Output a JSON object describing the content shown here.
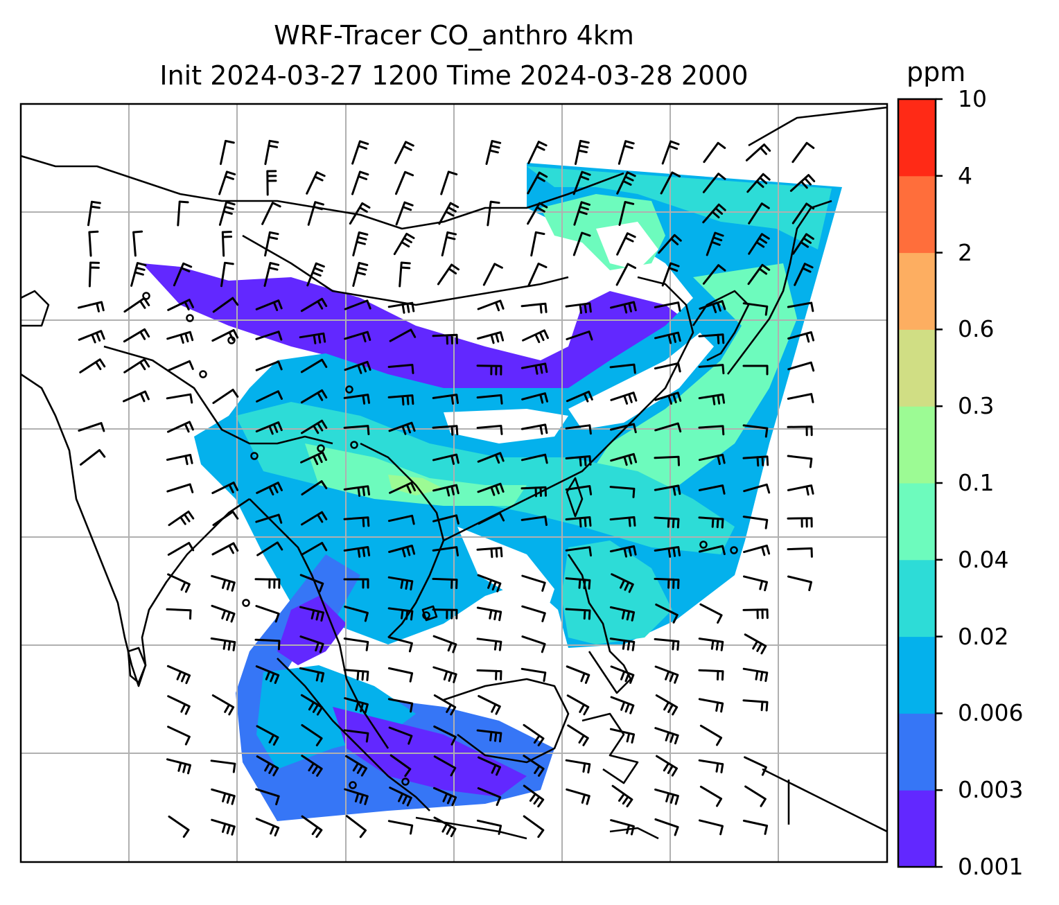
{
  "title": {
    "line1": "WRF-Tracer CO_anthro 4km",
    "line2": "Init 2024-03-27 1200 Time 2024-03-28 2000"
  },
  "colorbar": {
    "unit": "ppm",
    "ticks": [
      "0.001",
      "0.003",
      "0.006",
      "0.02",
      "0.04",
      "0.1",
      "0.3",
      "0.6",
      "2",
      "4",
      "10"
    ],
    "colors": [
      "#6228ff",
      "#3676f6",
      "#04b1ec",
      "#2ddcd7",
      "#6dfbbd",
      "#9cfb94",
      "#d0de84",
      "#fdae61",
      "#ff6e3b",
      "#ff2a16"
    ]
  },
  "map": {
    "field_colors": {
      "lowest": "#6228ff",
      "low": "#3676f6",
      "mid": "#04b1ec",
      "midhigh": "#2ddcd7",
      "high": "#6dfbbd",
      "peak": "#9cfb94"
    },
    "gridline_color": "#b0b0b0",
    "coast_color": "#000000"
  }
}
